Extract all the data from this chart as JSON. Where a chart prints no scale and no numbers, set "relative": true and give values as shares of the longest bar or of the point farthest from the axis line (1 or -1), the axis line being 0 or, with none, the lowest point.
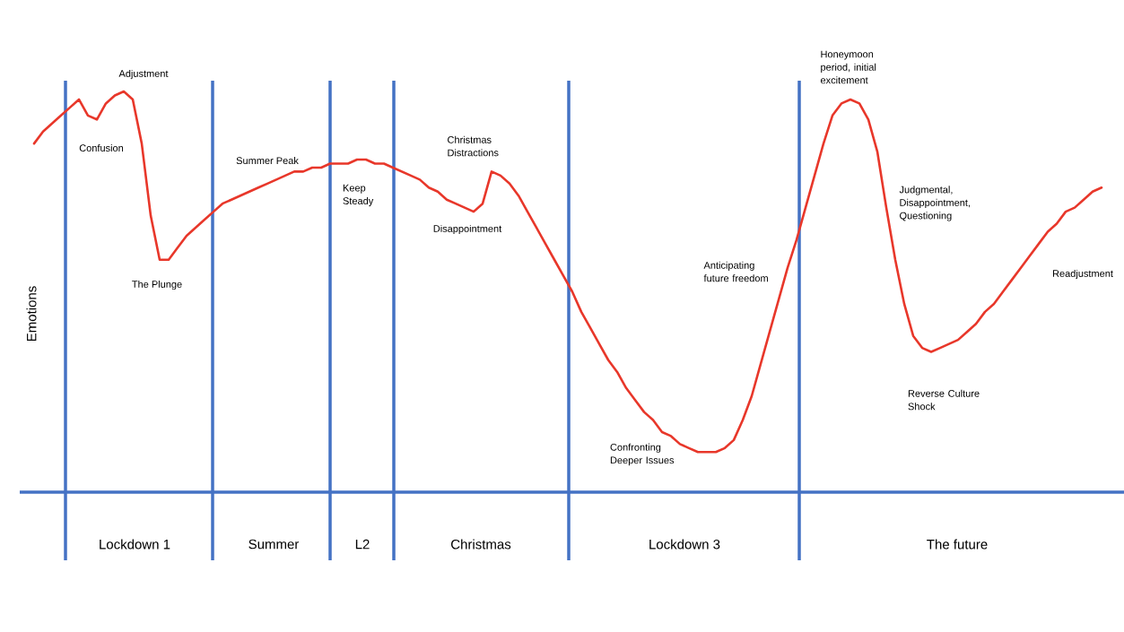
{
  "chart_data": {
    "type": "line",
    "relative": true,
    "ylabel": "Emotions",
    "categories": [
      null,
      null,
      null,
      null,
      null,
      null,
      null,
      null,
      null,
      null,
      null,
      null,
      null,
      null,
      null,
      null,
      null,
      null,
      null,
      null,
      null,
      null,
      null,
      null,
      null,
      null,
      null,
      null,
      null,
      null,
      null,
      null,
      null,
      null,
      null,
      null,
      null,
      null,
      null,
      null,
      null,
      null,
      null,
      null,
      null,
      null,
      null,
      null,
      null,
      null,
      null,
      null,
      null,
      null,
      null,
      null,
      null,
      null,
      null,
      null,
      null,
      null,
      null,
      null,
      null,
      null,
      null,
      null,
      null,
      null,
      null,
      null,
      null,
      null,
      null,
      null,
      null,
      null,
      null,
      null,
      null,
      null,
      null,
      null,
      null,
      null,
      null,
      null,
      null,
      null,
      null,
      null,
      null,
      null,
      null,
      null,
      null,
      null,
      null,
      null,
      null,
      null,
      null,
      null,
      null,
      null,
      null,
      null,
      null,
      null,
      null,
      null,
      null,
      null,
      null,
      null,
      null,
      null,
      null,
      null
    ],
    "series": [
      {
        "color": "#e8372a",
        "values": [
          0.87,
          0.9,
          0.92,
          0.94,
          0.96,
          0.98,
          0.94,
          0.93,
          0.97,
          0.99,
          1,
          0.98,
          0.87,
          0.69,
          0.58,
          0.58,
          0.61,
          0.64,
          0.66,
          0.68,
          0.7,
          0.72,
          0.73,
          0.74,
          0.75,
          0.76,
          0.77,
          0.78,
          0.79,
          0.8,
          0.8,
          0.81,
          0.81,
          0.82,
          0.82,
          0.82,
          0.83,
          0.83,
          0.82,
          0.82,
          0.81,
          0.8,
          0.79,
          0.78,
          0.76,
          0.75,
          0.73,
          0.72,
          0.71,
          0.7,
          0.72,
          0.8,
          0.79,
          0.77,
          0.74,
          0.7,
          0.66,
          0.62,
          0.58,
          0.54,
          0.5,
          0.45,
          0.41,
          0.37,
          0.33,
          0.3,
          0.26,
          0.23,
          0.2,
          0.18,
          0.15,
          0.14,
          0.12,
          0.11,
          0.1,
          0.1,
          0.1,
          0.11,
          0.13,
          0.18,
          0.24,
          0.32,
          0.4,
          0.48,
          0.56,
          0.63,
          0.71,
          0.79,
          0.87,
          0.94,
          0.97,
          0.98,
          0.97,
          0.93,
          0.85,
          0.71,
          0.58,
          0.47,
          0.39,
          0.36,
          0.35,
          0.36,
          0.37,
          0.38,
          0.4,
          0.42,
          0.45,
          0.47,
          0.5,
          0.53,
          0.56,
          0.59,
          0.62,
          0.65,
          0.67,
          0.7,
          0.71,
          0.73,
          0.75,
          0.76
        ]
      }
    ],
    "annotations": [
      "Lockdown 1",
      "Summer",
      "L2",
      "Christmas",
      "Lockdown 3",
      "The future",
      "Adjustment",
      "Confusion",
      "The Plunge",
      "Summer Peak",
      "Keep Steady",
      "Christmas Distractions",
      "Disappointment",
      "Confronting Deeper Issues",
      "Anticipating future freedom",
      "Honeymoon period, initial excitement",
      "Judgmental, Disappointment, Questioning",
      "Reverse Culture Shock",
      "Readjustment"
    ]
  }
}
